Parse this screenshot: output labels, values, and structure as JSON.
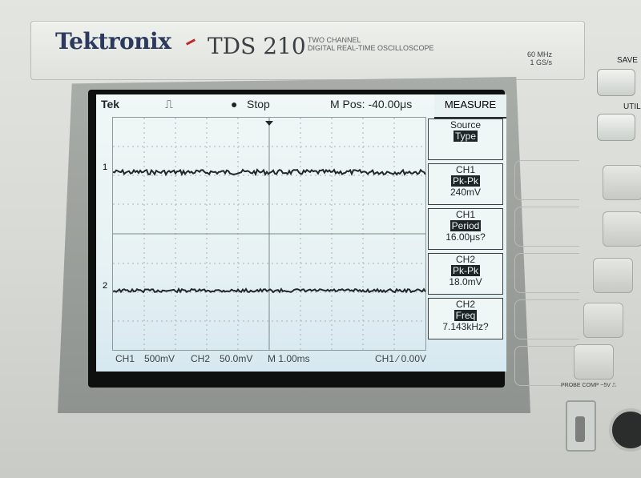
{
  "device": {
    "brand": "Tektronix",
    "model": "TDS 210",
    "desc_line1": "TWO CHANNEL",
    "desc_line2": "DIGITAL REAL-TIME OSCILLOSCOPE",
    "bandwidth": "60 MHz",
    "sample_rate": "1 GS/s"
  },
  "screen": {
    "brand_short": "Tek",
    "run_state": "Stop",
    "m_pos": "M Pos: -40.00μs",
    "menu_title": "MEASURE",
    "menu": [
      {
        "top": "Source",
        "mid": "Type",
        "bottom": ""
      },
      {
        "top": "CH1",
        "mid": "Pk-Pk",
        "bottom": "240mV"
      },
      {
        "top": "CH1",
        "mid": "Period",
        "bottom": "16.00μs?"
      },
      {
        "top": "CH2",
        "mid": "Pk-Pk",
        "bottom": "18.0mV"
      },
      {
        "top": "CH2",
        "mid": "Freq",
        "bottom": "7.143kHz?"
      }
    ],
    "bottom": {
      "ch1": "CH1",
      "ch1_scale": "500mV",
      "ch2": "CH2",
      "ch2_scale": "50.0mV",
      "time": "M 1.00ms",
      "trigger": "CH1 ∕ 0.00V"
    },
    "trace_markers": [
      "1",
      "2"
    ]
  },
  "buttons": {
    "save": "SAVE",
    "util": "UTIL"
  },
  "probe_comp": "PROBE COMP\n~5V ⎍",
  "colors": {
    "screen": "#e7f2f4",
    "trace": "#222729",
    "brand": "#2d3a5e"
  }
}
